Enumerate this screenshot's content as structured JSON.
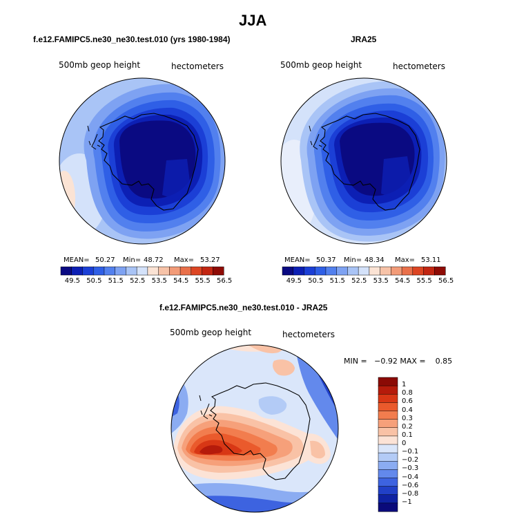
{
  "page_title": "JJA",
  "panels": [
    {
      "title": "f.e12.FAMIPC5.ne30_ne30.test.010 (yrs 1980-1984)",
      "left_label": "500mb geop height",
      "right_label": "hectometers",
      "stats": {
        "mean_label": "MEAN=",
        "mean": "50.27",
        "min_label": "Min=",
        "min": "48.72",
        "max_label": "Max=",
        "max": "53.27"
      }
    },
    {
      "title": "JRA25",
      "left_label": "500mb geop height",
      "right_label": "hectometers",
      "stats": {
        "mean_label": "MEAN=",
        "mean": "50.37",
        "min_label": "Min=",
        "min": "48.34",
        "max_label": "Max=",
        "max": "53.11"
      }
    },
    {
      "title": "f.e12.FAMIPC5.ne30_ne30.test.010 - JRA25",
      "left_label": "500mb geop height",
      "right_label": "hectometers",
      "minmax": "MIN =   −0.92 MAX =    0.85"
    }
  ],
  "colorbar_top": {
    "ticks": [
      "49.5",
      "50.5",
      "51.5",
      "52.5",
      "53.5",
      "54.5",
      "55.5",
      "56.5"
    ],
    "colors": [
      "#0a0a82",
      "#0c1fb4",
      "#1b3fd6",
      "#2f5fe6",
      "#5280ee",
      "#7ea2f2",
      "#a9c4f6",
      "#d4e2fa",
      "#fbe3d4",
      "#f7c3a8",
      "#f29b78",
      "#e9704a",
      "#dc4523",
      "#c22612",
      "#8e0b05"
    ]
  },
  "colorbar_diff": {
    "ticks": [
      "1",
      "0.8",
      "0.6",
      "0.4",
      "0.3",
      "0.2",
      "0.1",
      "0",
      "−0.1",
      "−0.2",
      "−0.3",
      "−0.4",
      "−0.6",
      "−0.8",
      "−1"
    ],
    "colors": [
      "#8b0a05",
      "#b51b0b",
      "#d83715",
      "#ea5a2c",
      "#f27d4e",
      "#f6a07a",
      "#f9c2a6",
      "#fce3d6",
      "#dae6fa",
      "#b3cbf6",
      "#8bacf2",
      "#6389ec",
      "#3d63e0",
      "#2140c7",
      "#0f22a2",
      "#0a0a7a"
    ]
  },
  "chart_data": [
    {
      "type": "heatmap",
      "title": "f.e12.FAMIPC5.ne30_ne30.test.010 (yrs 1980-1984)",
      "variable": "500mb geop height",
      "units": "hectometers",
      "projection": "polar stereographic, south pole",
      "mean": 50.27,
      "min": 48.72,
      "max": 53.27,
      "contour_levels": [
        49.5,
        50,
        50.5,
        51,
        51.5,
        52,
        52.5,
        53,
        53.5,
        54,
        54.5,
        55,
        55.5,
        56,
        56.5
      ]
    },
    {
      "type": "heatmap",
      "title": "JRA25",
      "variable": "500mb geop height",
      "units": "hectometers",
      "projection": "polar stereographic, south pole",
      "mean": 50.37,
      "min": 48.34,
      "max": 53.11,
      "contour_levels": [
        49.5,
        50,
        50.5,
        51,
        51.5,
        52,
        52.5,
        53,
        53.5,
        54,
        54.5,
        55,
        55.5,
        56,
        56.5
      ]
    },
    {
      "type": "heatmap",
      "title": "f.e12.FAMIPC5.ne30_ne30.test.010 - JRA25",
      "variable": "500mb geop height",
      "units": "hectometers",
      "projection": "polar stereographic, south pole",
      "min": -0.92,
      "max": 0.85,
      "contour_levels": [
        -1,
        -0.8,
        -0.6,
        -0.4,
        -0.3,
        -0.2,
        -0.1,
        0,
        0.1,
        0.2,
        0.3,
        0.4,
        0.6,
        0.8,
        1
      ]
    }
  ]
}
